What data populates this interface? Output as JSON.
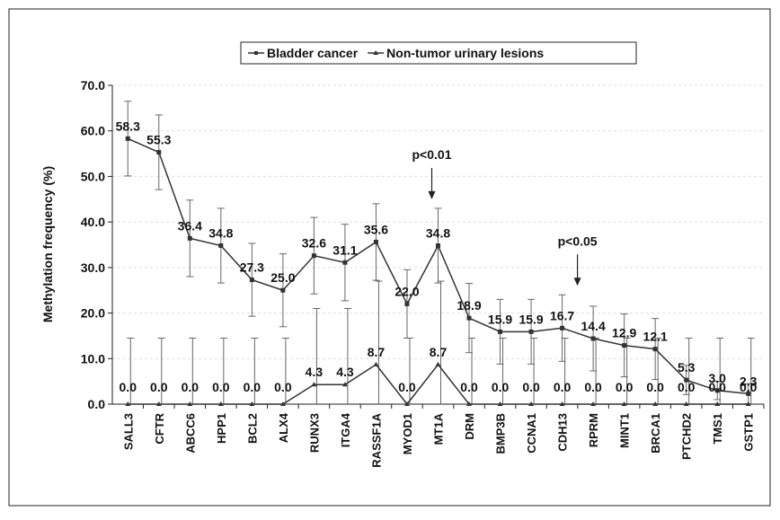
{
  "chart_data": {
    "type": "line",
    "legend_position": "top",
    "ylabel": "Methylation frequency (%)",
    "categories": [
      "SALL3",
      "CFTR",
      "ABCC6",
      "HPP1",
      "BCL2",
      "ALX4",
      "RUNX3",
      "ITGA4",
      "RASSF1A",
      "MYOD1",
      "MT1A",
      "DRM",
      "BMP3B",
      "CCNA1",
      "CDH13",
      "RPRM",
      "MINT1",
      "BRCA1",
      "PTCHD2",
      "TMS1",
      "GSTP1"
    ],
    "series": [
      {
        "name": "Bladder cancer",
        "color": "#333333",
        "marker": "square",
        "values": [
          58.3,
          55.3,
          36.4,
          34.8,
          27.3,
          25.0,
          32.6,
          31.1,
          35.6,
          22.0,
          34.8,
          18.9,
          15.9,
          15.9,
          16.7,
          14.4,
          12.9,
          12.1,
          5.3,
          3.0,
          2.3
        ],
        "value_labels": [
          "58.3",
          "55.3",
          "36.4",
          "34.8",
          "27.3",
          "25.0",
          "32.6",
          "31.1",
          "35.6",
          "22.0",
          "34.8",
          "18.9",
          "15.9",
          "15.9",
          "16.7",
          "14.4",
          "12.9",
          "12.1",
          "5.3",
          "3.0",
          "2.3"
        ],
        "errors": [
          8.2,
          8.2,
          8.4,
          8.2,
          8.0,
          8.0,
          8.4,
          8.4,
          8.4,
          7.5,
          8.2,
          7.6,
          7.1,
          7.1,
          7.3,
          7.1,
          6.9,
          6.7,
          3.2,
          2.0,
          2.2
        ]
      },
      {
        "name": "Non-tumor urinary lesions",
        "color": "#333333",
        "marker": "triangle",
        "values": [
          0,
          0,
          0,
          0,
          0,
          0,
          4.3,
          4.3,
          8.7,
          0,
          8.7,
          0,
          0,
          0,
          0,
          0,
          0,
          0,
          0,
          0,
          0
        ],
        "value_labels": [
          "0.0",
          "0.0",
          "0.0",
          "0.0",
          "0.0",
          "0.0",
          "4.3",
          "4.3",
          "8.7",
          "0.0",
          "8.7",
          "0.0",
          "0.0",
          "0.0",
          "0.0",
          "0.0",
          "0.0",
          "0.0",
          "0.0",
          "0.0",
          "0.0"
        ],
        "errors": [
          14.5,
          14.5,
          14.5,
          14.5,
          14.5,
          14.5,
          16.7,
          16.7,
          18.3,
          14.5,
          18.3,
          14.5,
          14.5,
          14.5,
          14.5,
          14.5,
          14.5,
          14.5,
          14.5,
          14.5,
          14.5
        ]
      }
    ],
    "annotations": [
      {
        "text": "p<0.01",
        "category": "MT1A"
      },
      {
        "text": "p<0.05",
        "category": "CDH13"
      }
    ],
    "ylim": [
      0,
      70
    ],
    "yticks": [
      {
        "value": 0,
        "label": "0.0"
      },
      {
        "value": 10,
        "label": "10.0"
      },
      {
        "value": 20,
        "label": "20.0"
      },
      {
        "value": 30,
        "label": "30.0"
      },
      {
        "value": 40,
        "label": "40.0"
      },
      {
        "value": 50,
        "label": "50.0"
      },
      {
        "value": 60,
        "label": "60.0"
      },
      {
        "value": 70,
        "label": "70.0"
      }
    ],
    "grid": true
  }
}
